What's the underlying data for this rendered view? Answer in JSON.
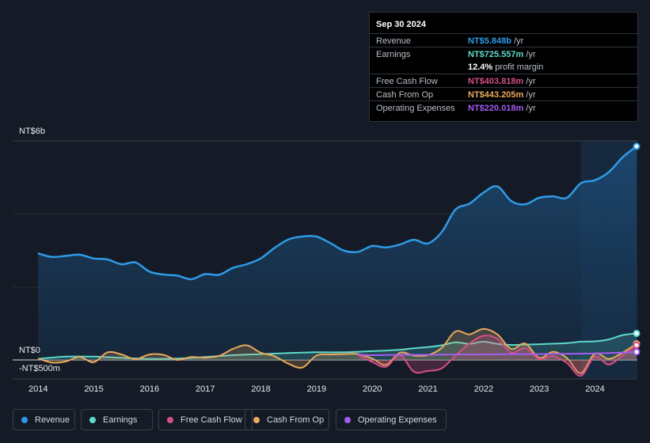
{
  "tooltip": {
    "date": "Sep 30 2024",
    "rows": [
      {
        "label": "Revenue",
        "value": "NT$5.848b",
        "unit": "/yr",
        "color": "#2f9be8"
      },
      {
        "label": "Earnings",
        "value": "NT$725.557m",
        "unit": "/yr",
        "color": "#5fd9c9"
      },
      {
        "label": "",
        "value": "12.4%",
        "unit": "profit margin"
      },
      {
        "label": "Free Cash Flow",
        "value": "NT$403.818m",
        "unit": "/yr",
        "color": "#d64f86"
      },
      {
        "label": "Cash From Op",
        "value": "NT$443.205m",
        "unit": "/yr",
        "color": "#e9a85c"
      },
      {
        "label": "Operating Expenses",
        "value": "NT$220.018m",
        "unit": "/yr",
        "color": "#a45cf0"
      }
    ]
  },
  "legend": [
    {
      "label": "Revenue",
      "color": "#2f9be8"
    },
    {
      "label": "Earnings",
      "color": "#5fd9c9"
    },
    {
      "label": "Free Cash Flow",
      "color": "#d64f86"
    },
    {
      "label": "Cash From Op",
      "color": "#e9a85c"
    },
    {
      "label": "Operating Expenses",
      "color": "#a45cf0"
    }
  ],
  "chart_data": {
    "type": "area",
    "y_unit": "NT$ millions",
    "ylim": [
      -500,
      6000
    ],
    "y_tick_labels": [
      "NT$6b",
      "NT$0",
      "-NT$500m"
    ],
    "y_tick_values": [
      6000,
      0,
      -500
    ],
    "x_tick_labels": [
      "2014",
      "2015",
      "2016",
      "2017",
      "2018",
      "2019",
      "2020",
      "2021",
      "2022",
      "2023",
      "2024"
    ],
    "x_range": [
      2014,
      2024.75
    ],
    "highlight_from": 2023.75,
    "series": [
      {
        "name": "Revenue",
        "color": "#2f9be8",
        "fill": true,
        "points": [
          [
            2014.0,
            2920
          ],
          [
            2014.25,
            2820
          ],
          [
            2014.5,
            2850
          ],
          [
            2014.75,
            2880
          ],
          [
            2015.0,
            2780
          ],
          [
            2015.25,
            2750
          ],
          [
            2015.5,
            2620
          ],
          [
            2015.75,
            2670
          ],
          [
            2016.0,
            2420
          ],
          [
            2016.25,
            2340
          ],
          [
            2016.5,
            2310
          ],
          [
            2016.75,
            2210
          ],
          [
            2017.0,
            2350
          ],
          [
            2017.25,
            2330
          ],
          [
            2017.5,
            2520
          ],
          [
            2017.75,
            2620
          ],
          [
            2018.0,
            2780
          ],
          [
            2018.25,
            3070
          ],
          [
            2018.5,
            3300
          ],
          [
            2018.75,
            3380
          ],
          [
            2019.0,
            3380
          ],
          [
            2019.25,
            3200
          ],
          [
            2019.5,
            2990
          ],
          [
            2019.75,
            2960
          ],
          [
            2020.0,
            3120
          ],
          [
            2020.25,
            3080
          ],
          [
            2020.5,
            3160
          ],
          [
            2020.75,
            3290
          ],
          [
            2021.0,
            3190
          ],
          [
            2021.25,
            3500
          ],
          [
            2021.5,
            4120
          ],
          [
            2021.75,
            4280
          ],
          [
            2022.0,
            4580
          ],
          [
            2022.25,
            4750
          ],
          [
            2022.5,
            4350
          ],
          [
            2022.75,
            4260
          ],
          [
            2023.0,
            4440
          ],
          [
            2023.25,
            4480
          ],
          [
            2023.5,
            4440
          ],
          [
            2023.75,
            4840
          ],
          [
            2024.0,
            4920
          ],
          [
            2024.25,
            5140
          ],
          [
            2024.5,
            5550
          ],
          [
            2024.75,
            5848
          ]
        ]
      },
      {
        "name": "Earnings",
        "color": "#5fd9c9",
        "fill": true,
        "points": [
          [
            2014.0,
            30
          ],
          [
            2014.5,
            90
          ],
          [
            2015.0,
            90
          ],
          [
            2015.5,
            60
          ],
          [
            2016.0,
            30
          ],
          [
            2016.5,
            40
          ],
          [
            2017.0,
            80
          ],
          [
            2017.5,
            130
          ],
          [
            2018.0,
            160
          ],
          [
            2018.5,
            190
          ],
          [
            2019.0,
            210
          ],
          [
            2019.5,
            210
          ],
          [
            2020.0,
            240
          ],
          [
            2020.5,
            280
          ],
          [
            2020.75,
            320
          ],
          [
            2021.0,
            350
          ],
          [
            2021.25,
            400
          ],
          [
            2021.5,
            480
          ],
          [
            2021.75,
            440
          ],
          [
            2022.0,
            500
          ],
          [
            2022.25,
            440
          ],
          [
            2022.5,
            410
          ],
          [
            2022.75,
            420
          ],
          [
            2023.0,
            430
          ],
          [
            2023.5,
            460
          ],
          [
            2023.75,
            500
          ],
          [
            2024.0,
            510
          ],
          [
            2024.25,
            560
          ],
          [
            2024.5,
            680
          ],
          [
            2024.75,
            726
          ]
        ]
      },
      {
        "name": "Free Cash Flow",
        "color": "#d64f86",
        "fill": true,
        "points": [
          [
            2019.75,
            140
          ],
          [
            2020.0,
            -50
          ],
          [
            2020.25,
            -180
          ],
          [
            2020.5,
            130
          ],
          [
            2020.75,
            -310
          ],
          [
            2021.0,
            -290
          ],
          [
            2021.25,
            -220
          ],
          [
            2021.5,
            120
          ],
          [
            2021.75,
            450
          ],
          [
            2022.0,
            660
          ],
          [
            2022.25,
            580
          ],
          [
            2022.5,
            200
          ],
          [
            2022.75,
            330
          ],
          [
            2023.0,
            30
          ],
          [
            2023.25,
            100
          ],
          [
            2023.5,
            -80
          ],
          [
            2023.75,
            -420
          ],
          [
            2024.0,
            90
          ],
          [
            2024.25,
            -120
          ],
          [
            2024.5,
            130
          ],
          [
            2024.75,
            404
          ]
        ]
      },
      {
        "name": "Cash From Op",
        "color": "#e9a85c",
        "fill": true,
        "points": [
          [
            2014.0,
            40
          ],
          [
            2014.25,
            -70
          ],
          [
            2014.5,
            -40
          ],
          [
            2014.75,
            80
          ],
          [
            2015.0,
            -60
          ],
          [
            2015.25,
            210
          ],
          [
            2015.5,
            150
          ],
          [
            2015.75,
            20
          ],
          [
            2016.0,
            150
          ],
          [
            2016.25,
            140
          ],
          [
            2016.5,
            0
          ],
          [
            2016.75,
            80
          ],
          [
            2017.0,
            60
          ],
          [
            2017.25,
            110
          ],
          [
            2017.5,
            300
          ],
          [
            2017.75,
            400
          ],
          [
            2018.0,
            200
          ],
          [
            2018.25,
            100
          ],
          [
            2018.5,
            -100
          ],
          [
            2018.75,
            -200
          ],
          [
            2019.0,
            120
          ],
          [
            2019.25,
            150
          ],
          [
            2019.5,
            160
          ],
          [
            2019.75,
            160
          ],
          [
            2020.0,
            40
          ],
          [
            2020.25,
            -130
          ],
          [
            2020.5,
            200
          ],
          [
            2020.75,
            120
          ],
          [
            2021.0,
            130
          ],
          [
            2021.25,
            330
          ],
          [
            2021.5,
            780
          ],
          [
            2021.75,
            700
          ],
          [
            2022.0,
            850
          ],
          [
            2022.25,
            700
          ],
          [
            2022.5,
            300
          ],
          [
            2022.75,
            450
          ],
          [
            2023.0,
            60
          ],
          [
            2023.25,
            220
          ],
          [
            2023.5,
            50
          ],
          [
            2023.75,
            -350
          ],
          [
            2024.0,
            170
          ],
          [
            2024.25,
            30
          ],
          [
            2024.5,
            200
          ],
          [
            2024.75,
            443
          ]
        ]
      },
      {
        "name": "Operating Expenses",
        "color": "#a45cf0",
        "fill": false,
        "points": [
          [
            2019.75,
            150
          ],
          [
            2020.0,
            130
          ],
          [
            2020.5,
            140
          ],
          [
            2021.0,
            140
          ],
          [
            2021.5,
            150
          ],
          [
            2022.0,
            150
          ],
          [
            2022.5,
            160
          ],
          [
            2023.0,
            160
          ],
          [
            2023.5,
            170
          ],
          [
            2024.0,
            180
          ],
          [
            2024.5,
            200
          ],
          [
            2024.75,
            220
          ]
        ]
      }
    ]
  }
}
